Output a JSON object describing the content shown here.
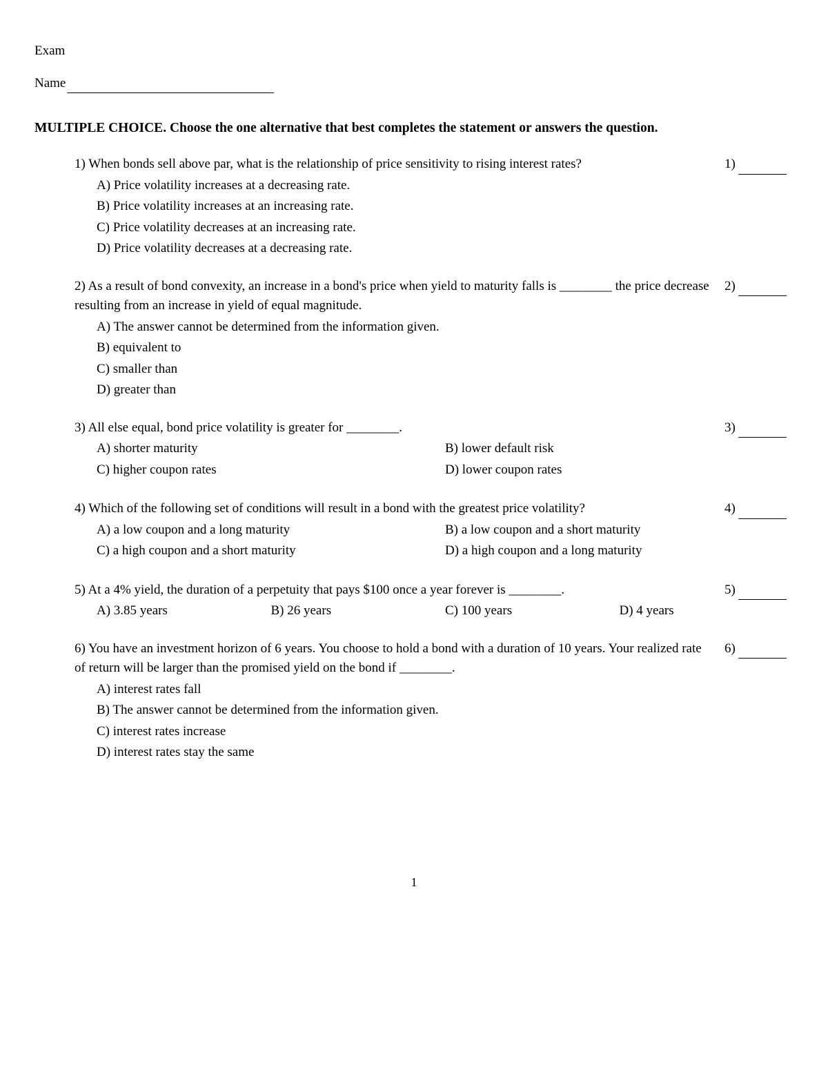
{
  "header": {
    "exam_label": "Exam",
    "name_label": "Name"
  },
  "section_title": "MULTIPLE CHOICE.  Choose the one alternative that best completes the statement or answers the question.",
  "questions": [
    {
      "num": "1)",
      "text": "When bonds sell above par, what is the relationship of price sensitivity to rising interest rates?",
      "right_num": "1)",
      "layout": "single",
      "options": [
        "A) Price volatility increases at a decreasing rate.",
        "B) Price volatility increases at an increasing rate.",
        "C) Price volatility decreases at an increasing rate.",
        "D) Price volatility decreases at a decreasing rate."
      ]
    },
    {
      "num": "2)",
      "text": "As a result of bond convexity, an increase in a bond's price when yield to maturity falls is ________ the price decrease resulting from an increase in yield of equal magnitude.",
      "right_num": "2)",
      "layout": "single",
      "options": [
        "A) The answer cannot be determined from the information given.",
        "B) equivalent to",
        "C) smaller than",
        "D) greater than"
      ]
    },
    {
      "num": "3)",
      "text": "All else equal, bond price volatility is greater for ________.",
      "right_num": "3)",
      "layout": "two-col",
      "options_left": [
        "A) shorter maturity",
        "C) higher coupon rates"
      ],
      "options_right": [
        "B) lower default risk",
        "D) lower coupon rates"
      ]
    },
    {
      "num": "4)",
      "text": "Which of the following set of conditions will result in a bond with the greatest price volatility?",
      "right_num": "4)",
      "layout": "two-col",
      "options_left": [
        "A) a low coupon and a long maturity",
        "C) a high coupon and a short maturity"
      ],
      "options_right": [
        "B) a low coupon and a short maturity",
        "D) a high coupon and a long maturity"
      ]
    },
    {
      "num": "5)",
      "text": "At a 4% yield, the duration of a perpetuity that pays $100 once a year forever is ________.",
      "right_num": "5)",
      "layout": "four-col",
      "options": [
        "A) 3.85 years",
        "B) 26 years",
        "C) 100 years",
        "D) 4 years"
      ]
    },
    {
      "num": "6)",
      "text": "You have an investment horizon of 6 years. You choose to hold a bond with a duration of 10 years. Your realized rate of return will be larger than the promised yield on the bond if ________.",
      "right_num": "6)",
      "layout": "single",
      "options": [
        "A) interest rates fall",
        "B) The answer cannot be determined from the information given.",
        "C) interest rates increase",
        "D) interest rates stay the same"
      ]
    }
  ],
  "page_number": "1"
}
